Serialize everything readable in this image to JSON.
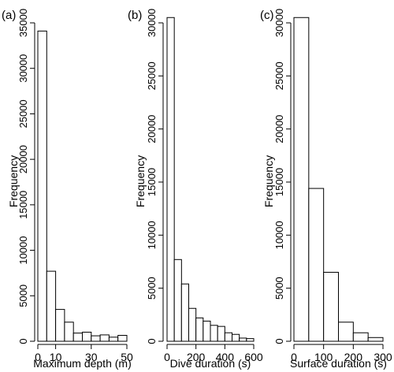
{
  "chart_data": [
    {
      "panel_label": "(a)",
      "type": "bar",
      "subtype": "histogram",
      "xlabel": "Maximum depth (m)",
      "ylabel": "Frequency",
      "x_ticks": [
        0,
        10,
        30,
        50
      ],
      "y_ticks": [
        0,
        5000,
        10000,
        15000,
        20000,
        25000,
        30000,
        35000
      ],
      "xlim": [
        0,
        50
      ],
      "ylim": [
        0,
        35000
      ],
      "bins": [
        {
          "x0": 0,
          "x1": 5,
          "value": 34100
        },
        {
          "x0": 5,
          "x1": 10,
          "value": 7700
        },
        {
          "x0": 10,
          "x1": 15,
          "value": 3500
        },
        {
          "x0": 15,
          "x1": 20,
          "value": 2100
        },
        {
          "x0": 20,
          "x1": 25,
          "value": 900
        },
        {
          "x0": 25,
          "x1": 30,
          "value": 1000
        },
        {
          "x0": 30,
          "x1": 35,
          "value": 600
        },
        {
          "x0": 35,
          "x1": 40,
          "value": 700
        },
        {
          "x0": 40,
          "x1": 45,
          "value": 450
        },
        {
          "x0": 45,
          "x1": 50,
          "value": 650
        }
      ]
    },
    {
      "panel_label": "(b)",
      "type": "bar",
      "subtype": "histogram",
      "xlabel": "Dive duration (s)",
      "ylabel": "Frequency",
      "x_ticks": [
        0,
        200,
        400,
        600
      ],
      "y_ticks": [
        0,
        5000,
        10000,
        15000,
        20000,
        25000,
        30000
      ],
      "xlim": [
        0,
        600
      ],
      "ylim": [
        0,
        30000
      ],
      "bins": [
        {
          "x0": 0,
          "x1": 50,
          "value": 30500
        },
        {
          "x0": 50,
          "x1": 100,
          "value": 7700
        },
        {
          "x0": 100,
          "x1": 150,
          "value": 5400
        },
        {
          "x0": 150,
          "x1": 200,
          "value": 3100
        },
        {
          "x0": 200,
          "x1": 250,
          "value": 2200
        },
        {
          "x0": 250,
          "x1": 300,
          "value": 1900
        },
        {
          "x0": 300,
          "x1": 350,
          "value": 1500
        },
        {
          "x0": 350,
          "x1": 400,
          "value": 1400
        },
        {
          "x0": 400,
          "x1": 450,
          "value": 800
        },
        {
          "x0": 450,
          "x1": 500,
          "value": 650
        },
        {
          "x0": 500,
          "x1": 550,
          "value": 300
        },
        {
          "x0": 550,
          "x1": 600,
          "value": 250
        }
      ]
    },
    {
      "panel_label": "(c)",
      "type": "bar",
      "subtype": "histogram",
      "xlabel": "Surface duration (s)",
      "ylabel": "Frequency",
      "x_ticks": [
        0,
        100,
        200,
        300
      ],
      "y_ticks": [
        0,
        5000,
        10000,
        15000,
        20000,
        25000,
        30000
      ],
      "xlim": [
        0,
        300
      ],
      "ylim": [
        0,
        30000
      ],
      "bins": [
        {
          "x0": 0,
          "x1": 50,
          "value": 30500
        },
        {
          "x0": 50,
          "x1": 100,
          "value": 14400
        },
        {
          "x0": 100,
          "x1": 150,
          "value": 6500
        },
        {
          "x0": 150,
          "x1": 200,
          "value": 1800
        },
        {
          "x0": 200,
          "x1": 250,
          "value": 800
        },
        {
          "x0": 250,
          "x1": 300,
          "value": 350
        }
      ]
    }
  ]
}
